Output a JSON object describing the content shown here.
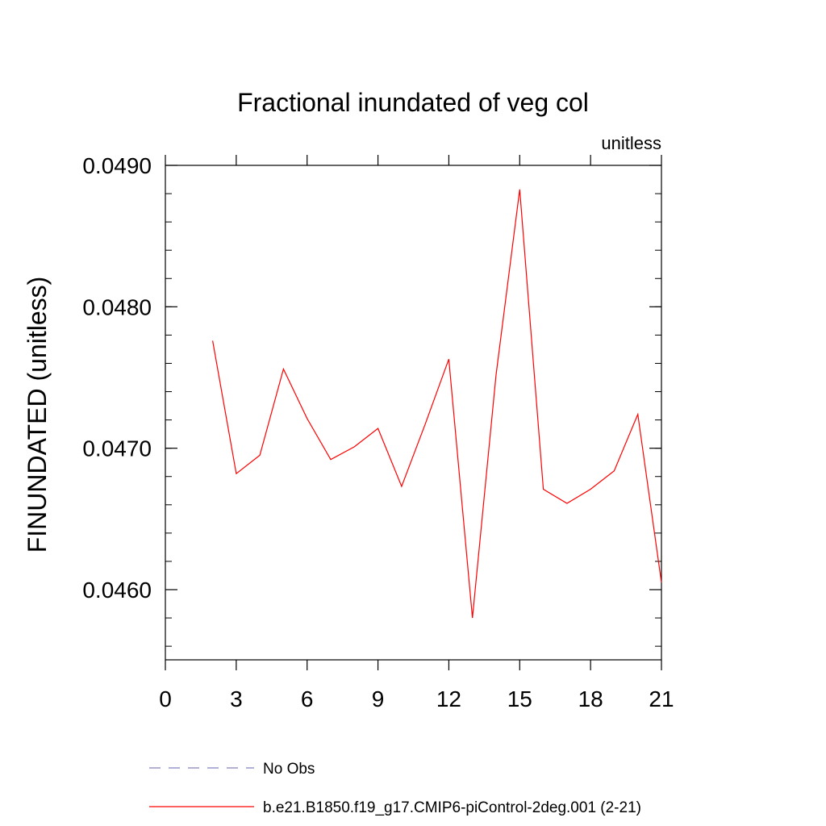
{
  "chart_data": {
    "type": "line",
    "title": "Fractional inundated of veg col",
    "units_label": "unitless",
    "ylabel": "FINUNDATED  (unitless)",
    "xlabel": "",
    "xlim": [
      0,
      21
    ],
    "ylim": [
      0.0455,
      0.0491
    ],
    "x_ticks": [
      0,
      3,
      6,
      9,
      12,
      15,
      18,
      21
    ],
    "x_tick_labels": [
      "0",
      "3",
      "6",
      "9",
      "12",
      "15",
      "18",
      "21"
    ],
    "y_ticks": [
      0.046,
      0.047,
      0.048,
      0.049
    ],
    "y_tick_labels": [
      "0.0460",
      "0.0470",
      "0.0480",
      "0.0490"
    ],
    "grid": false,
    "legend_position": "bottom-left",
    "series": [
      {
        "name": "No Obs",
        "color": "#8080c0",
        "dash": "dashed",
        "x": [],
        "y": []
      },
      {
        "name": "b.e21.B1850.f19_g17.CMIP6-piControl-2deg.001 (2-21)",
        "color": "#ff0000",
        "dash": "solid",
        "x": [
          2,
          3,
          4,
          5,
          6,
          7,
          8,
          9,
          10,
          11,
          12,
          13,
          14,
          15,
          16,
          17,
          18,
          19,
          20,
          21
        ],
        "y": [
          0.04776,
          0.04682,
          0.04695,
          0.04756,
          0.04721,
          0.04692,
          0.04701,
          0.04714,
          0.04673,
          0.04717,
          0.04763,
          0.0458,
          0.04752,
          0.04883,
          0.04671,
          0.04661,
          0.04671,
          0.04684,
          0.04724,
          0.04605
        ]
      }
    ]
  }
}
